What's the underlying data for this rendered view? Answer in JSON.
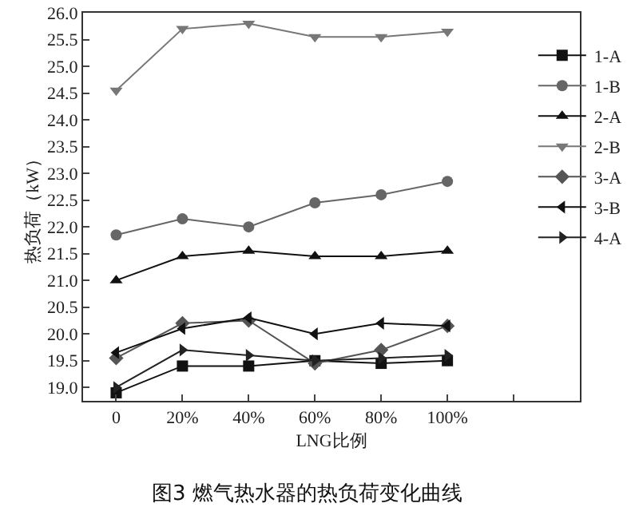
{
  "chart_data": {
    "type": "line",
    "title": "图3 燃气热水器的热负荷变化曲线",
    "xlabel": "LNG比例",
    "ylabel": "热负荷（kW）",
    "x": [
      0,
      20,
      40,
      60,
      80,
      100
    ],
    "xlim": [
      -10,
      140
    ],
    "xticks": [
      {
        "value": 0,
        "label": "0"
      },
      {
        "value": 20,
        "label": "20%"
      },
      {
        "value": 40,
        "label": "40%"
      },
      {
        "value": 60,
        "label": "60%"
      },
      {
        "value": 80,
        "label": "80%"
      },
      {
        "value": 100,
        "label": "100%"
      },
      {
        "value": 120,
        "label": null
      }
    ],
    "ylim": [
      18.75,
      26.0
    ],
    "yticks": [
      {
        "value": 19,
        "label": "19.0"
      },
      19.5,
      {
        "value": 20,
        "label": "20.0"
      },
      20.5,
      {
        "value": 21,
        "label": "21.0"
      },
      21.5,
      {
        "value": 22,
        "label": "22.0"
      },
      22.5,
      {
        "value": 23,
        "label": "23.0"
      },
      23.5,
      {
        "value": 24,
        "label": "24.0"
      },
      24.5,
      {
        "value": 25,
        "label": "25.0"
      },
      25.5,
      {
        "value": 26,
        "label": "26.0"
      }
    ],
    "grid": false,
    "legend": "right",
    "line_style": "solid",
    "series": [
      {
        "name": "1-A",
        "color": "#111111",
        "marker": "square",
        "values": [
          18.9,
          19.4,
          19.4,
          19.5,
          19.45,
          19.5
        ]
      },
      {
        "name": "1-B",
        "color": "#666666",
        "marker": "circle",
        "values": [
          21.85,
          22.15,
          22.0,
          22.45,
          22.6,
          22.85
        ]
      },
      {
        "name": "2-A",
        "color": "#111111",
        "marker": "triangle-up",
        "values": [
          21.0,
          21.45,
          21.55,
          21.45,
          21.45,
          21.55
        ]
      },
      {
        "name": "2-B",
        "color": "#777777",
        "marker": "triangle-down",
        "values": [
          24.55,
          25.7,
          25.8,
          25.55,
          25.55,
          25.65
        ]
      },
      {
        "name": "3-A",
        "color": "#555555",
        "marker": "diamond",
        "values": [
          19.55,
          20.2,
          20.25,
          19.45,
          19.7,
          20.15
        ]
      },
      {
        "name": "3-B",
        "color": "#111111",
        "marker": "triangle-left",
        "values": [
          19.65,
          20.1,
          20.3,
          20.0,
          20.2,
          20.15
        ]
      },
      {
        "name": "4-A",
        "color": "#222222",
        "marker": "triangle-right",
        "values": [
          19.0,
          19.7,
          19.6,
          19.5,
          19.55,
          19.6
        ]
      }
    ]
  }
}
